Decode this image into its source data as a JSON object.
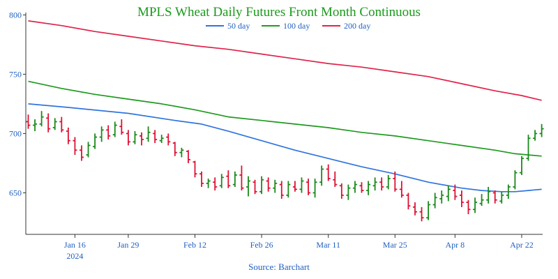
{
  "chart_data": {
    "type": "ohlc",
    "title": "MPLS Wheat Daily Futures Front Month Continuous",
    "source": "Source: Barchart",
    "colors": {
      "title": "#1a9a1a",
      "tick_text": "#1f5fbf",
      "up": "#1a8a1a",
      "down": "#dd1133",
      "ma50": "#2f74de",
      "ma100": "#1f9a1f",
      "ma200": "#e0234a",
      "axis": "#333333"
    },
    "ylim": [
      615,
      802
    ],
    "y_ticks": [
      650,
      700,
      750,
      800
    ],
    "x_ticks": [
      {
        "day": 7,
        "label": "Jan 16",
        "sub": "2024"
      },
      {
        "day": 15,
        "label": "Jan 29"
      },
      {
        "day": 25,
        "label": "Feb 12"
      },
      {
        "day": 35,
        "label": "Feb 26"
      },
      {
        "day": 45,
        "label": "Mar 11"
      },
      {
        "day": 55,
        "label": "Mar 25"
      },
      {
        "day": 64,
        "label": "Apr 8"
      },
      {
        "day": 74,
        "label": "Apr 22"
      }
    ],
    "legend": [
      {
        "key": "ma50",
        "name": "50 day"
      },
      {
        "key": "ma100",
        "name": "100 day"
      },
      {
        "key": "ma200",
        "name": "200 day"
      }
    ],
    "series": [
      {
        "key": "ma50",
        "name": "50 day",
        "points": [
          [
            0,
            725
          ],
          [
            6,
            722
          ],
          [
            15,
            717
          ],
          [
            22,
            711
          ],
          [
            26,
            708
          ],
          [
            30,
            702
          ],
          [
            35,
            694
          ],
          [
            40,
            686
          ],
          [
            45,
            679
          ],
          [
            50,
            672
          ],
          [
            55,
            666
          ],
          [
            60,
            659
          ],
          [
            65,
            654
          ],
          [
            68,
            652
          ],
          [
            71,
            651
          ],
          [
            73,
            651
          ],
          [
            75,
            652
          ],
          [
            77,
            653
          ]
        ]
      },
      {
        "key": "ma100",
        "name": "100 day",
        "points": [
          [
            0,
            744
          ],
          [
            5,
            738
          ],
          [
            10,
            733
          ],
          [
            15,
            729
          ],
          [
            20,
            725
          ],
          [
            25,
            720
          ],
          [
            30,
            714
          ],
          [
            35,
            711
          ],
          [
            40,
            708
          ],
          [
            45,
            705
          ],
          [
            50,
            701
          ],
          [
            55,
            698
          ],
          [
            60,
            694
          ],
          [
            65,
            690
          ],
          [
            70,
            686
          ],
          [
            73,
            683
          ],
          [
            77,
            681
          ]
        ]
      },
      {
        "key": "ma200",
        "name": "200 day",
        "points": [
          [
            0,
            795
          ],
          [
            5,
            791
          ],
          [
            10,
            786
          ],
          [
            15,
            782
          ],
          [
            20,
            778
          ],
          [
            25,
            774
          ],
          [
            30,
            771
          ],
          [
            35,
            767
          ],
          [
            40,
            763
          ],
          [
            45,
            759
          ],
          [
            50,
            756
          ],
          [
            55,
            752
          ],
          [
            60,
            748
          ],
          [
            65,
            742
          ],
          [
            70,
            736
          ],
          [
            74,
            732
          ],
          [
            77,
            728
          ]
        ]
      }
    ],
    "ohlc": [
      [
        0,
        710,
        716,
        704,
        707
      ],
      [
        1,
        707,
        712,
        702,
        708
      ],
      [
        2,
        708,
        719,
        706,
        714
      ],
      [
        3,
        713,
        717,
        701,
        704
      ],
      [
        4,
        705,
        713,
        703,
        710
      ],
      [
        5,
        710,
        714,
        701,
        703
      ],
      [
        6,
        702,
        705,
        691,
        694
      ],
      [
        7,
        694,
        697,
        682,
        686
      ],
      [
        8,
        686,
        690,
        677,
        680
      ],
      [
        9,
        682,
        693,
        680,
        690
      ],
      [
        10,
        689,
        700,
        687,
        697
      ],
      [
        11,
        697,
        706,
        693,
        703
      ],
      [
        12,
        703,
        707,
        695,
        698
      ],
      [
        13,
        699,
        710,
        697,
        707
      ],
      [
        14,
        706,
        712,
        699,
        701
      ],
      [
        15,
        700,
        703,
        690,
        693
      ],
      [
        16,
        693,
        702,
        691,
        699
      ],
      [
        17,
        698,
        701,
        690,
        695
      ],
      [
        18,
        696,
        706,
        693,
        701
      ],
      [
        19,
        700,
        703,
        692,
        695
      ],
      [
        20,
        694,
        699,
        692,
        696
      ],
      [
        21,
        697,
        700,
        690,
        693
      ],
      [
        22,
        692,
        693,
        681,
        684
      ],
      [
        23,
        684,
        688,
        680,
        686
      ],
      [
        24,
        685,
        686,
        675,
        678
      ],
      [
        25,
        676,
        677,
        663,
        666
      ],
      [
        26,
        666,
        668,
        655,
        658
      ],
      [
        27,
        658,
        662,
        654,
        660
      ],
      [
        28,
        659,
        663,
        652,
        655
      ],
      [
        29,
        656,
        666,
        654,
        663
      ],
      [
        30,
        664,
        669,
        654,
        656
      ],
      [
        31,
        657,
        668,
        655,
        665
      ],
      [
        32,
        665,
        673,
        652,
        654
      ],
      [
        33,
        655,
        664,
        647,
        660
      ],
      [
        34,
        659,
        661,
        649,
        651
      ],
      [
        35,
        651,
        664,
        649,
        661
      ],
      [
        36,
        660,
        663,
        651,
        654
      ],
      [
        37,
        654,
        661,
        650,
        658
      ],
      [
        38,
        657,
        660,
        645,
        648
      ],
      [
        39,
        648,
        660,
        646,
        657
      ],
      [
        40,
        655,
        660,
        651,
        653
      ],
      [
        41,
        653,
        663,
        650,
        660
      ],
      [
        42,
        659,
        662,
        648,
        650
      ],
      [
        43,
        650,
        662,
        646,
        659
      ],
      [
        44,
        659,
        673,
        656,
        670
      ],
      [
        45,
        670,
        674,
        660,
        662
      ],
      [
        46,
        661,
        668,
        655,
        657
      ],
      [
        47,
        656,
        658,
        645,
        648
      ],
      [
        48,
        648,
        657,
        644,
        654
      ],
      [
        49,
        654,
        660,
        650,
        657
      ],
      [
        50,
        656,
        659,
        650,
        652
      ],
      [
        51,
        652,
        660,
        648,
        657
      ],
      [
        52,
        656,
        663,
        652,
        659
      ],
      [
        53,
        659,
        663,
        652,
        655
      ],
      [
        54,
        655,
        665,
        653,
        662
      ],
      [
        55,
        662,
        668,
        651,
        653
      ],
      [
        56,
        653,
        660,
        646,
        648
      ],
      [
        57,
        648,
        650,
        636,
        639
      ],
      [
        58,
        638,
        642,
        631,
        634
      ],
      [
        59,
        634,
        638,
        626,
        629
      ],
      [
        60,
        629,
        643,
        627,
        640
      ],
      [
        61,
        640,
        650,
        637,
        646
      ],
      [
        62,
        645,
        652,
        641,
        648
      ],
      [
        63,
        647,
        656,
        643,
        653
      ],
      [
        64,
        652,
        657,
        644,
        647
      ],
      [
        65,
        648,
        652,
        638,
        642
      ],
      [
        66,
        642,
        644,
        632,
        636
      ],
      [
        67,
        636,
        646,
        633,
        642
      ],
      [
        68,
        641,
        649,
        639,
        644
      ],
      [
        69,
        644,
        655,
        641,
        651
      ],
      [
        70,
        650,
        652,
        641,
        644
      ],
      [
        71,
        643,
        651,
        641,
        648
      ],
      [
        72,
        648,
        657,
        645,
        655
      ],
      [
        73,
        655,
        669,
        653,
        667
      ],
      [
        74,
        667,
        681,
        665,
        679
      ],
      [
        75,
        679,
        699,
        677,
        696
      ],
      [
        76,
        696,
        703,
        694,
        700
      ],
      [
        77,
        700,
        708,
        697,
        704
      ]
    ]
  }
}
